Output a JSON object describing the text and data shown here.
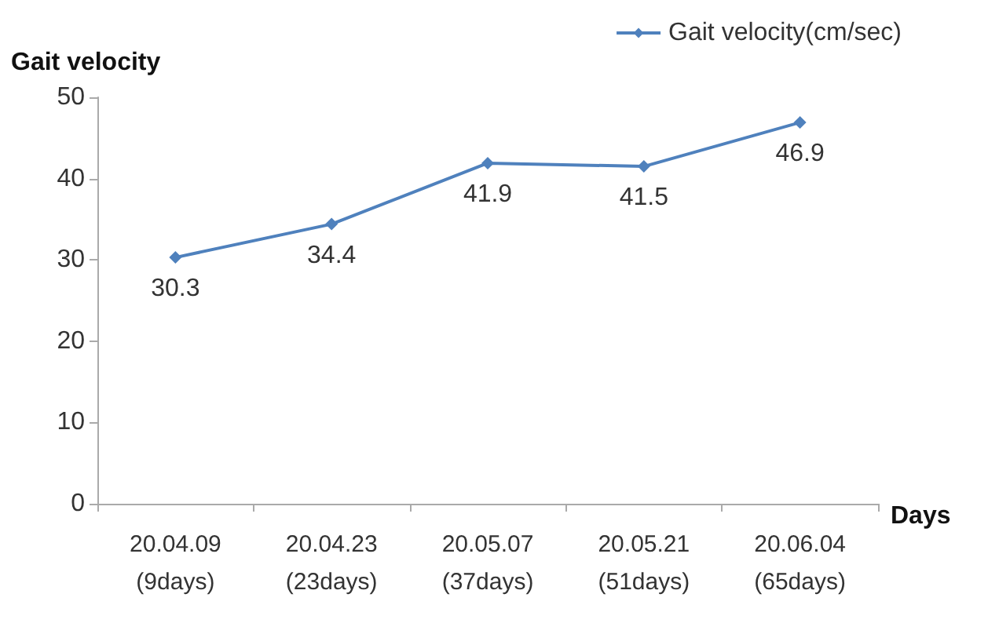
{
  "chart_data": {
    "type": "line",
    "ylabel": "Gait velocity",
    "xlabel": "Days",
    "categories": [
      "20.04.09\n(9days)",
      "20.04.23\n(23days)",
      "20.05.07\n(37days)",
      "20.05.21\n(51days)",
      "20.06.04\n(65days)"
    ],
    "series": [
      {
        "name": "Gait velocity(cm/sec)",
        "color": "#4f81bd",
        "values": [
          30.3,
          34.4,
          41.9,
          41.5,
          46.9
        ]
      }
    ],
    "ylim": [
      0,
      50
    ],
    "yticks": [
      0,
      10,
      20,
      30,
      40,
      50
    ],
    "grid": false,
    "legend": "top right",
    "marker": "diamond",
    "line_style": "solid",
    "data_labels": true
  }
}
